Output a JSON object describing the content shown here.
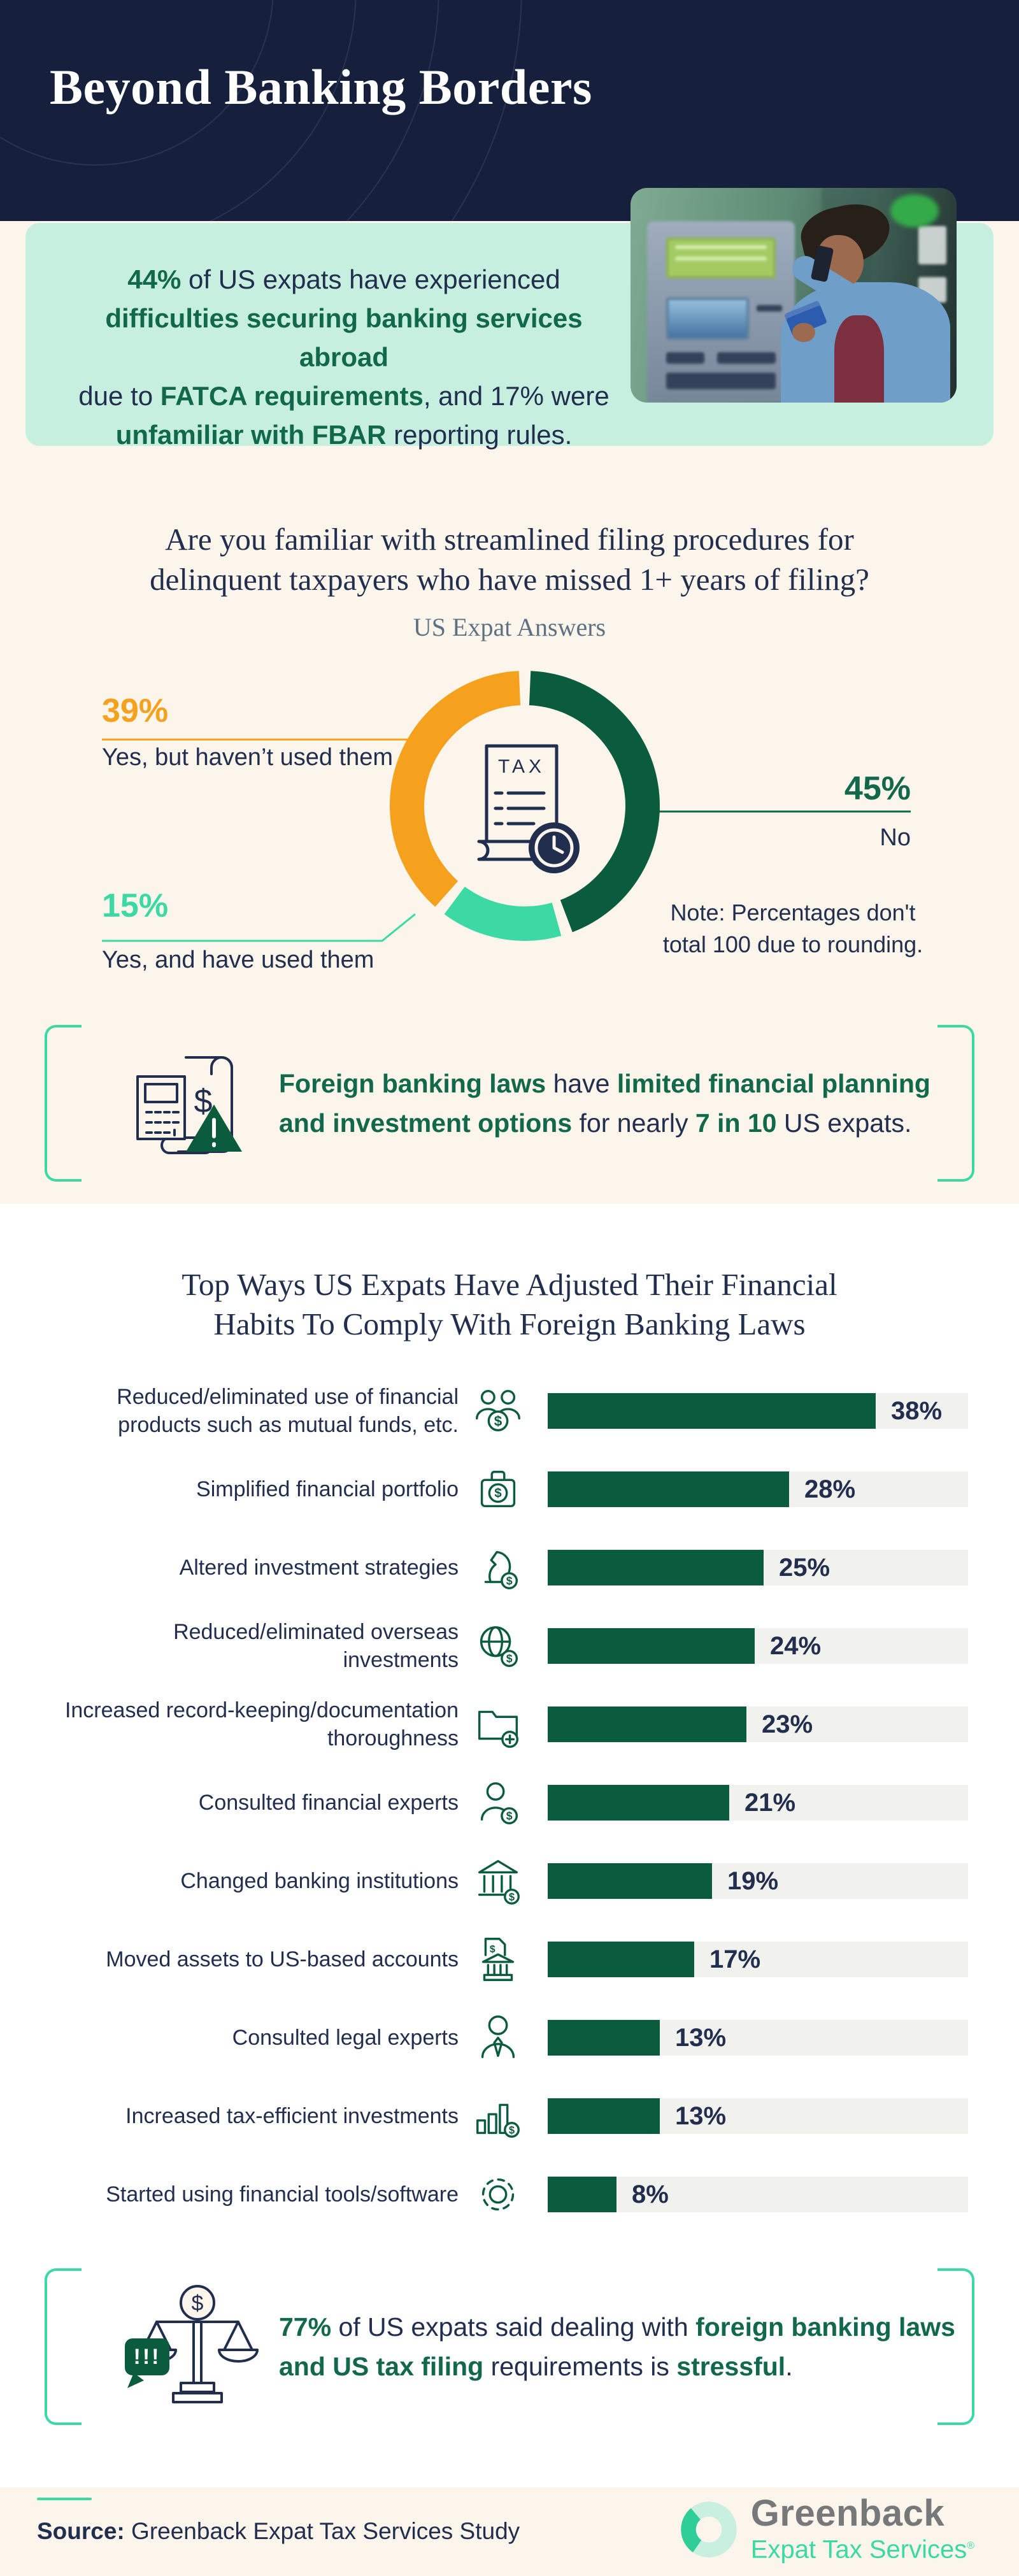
{
  "colors": {
    "navy_bg": "#161F3B",
    "navy_text": "#222E4E",
    "green_text": "#11684A",
    "green_fill": "#0B5C3E",
    "mint": "#3CD9A5",
    "mint_bg": "#C7EFDF",
    "orange": "#F5A11E",
    "cream": "#FBF5EC",
    "track": "#F1F1EE"
  },
  "header": {
    "title": "Beyond Banking Borders"
  },
  "hero": {
    "lines": [
      [
        {
          "t": "44%",
          "c": "gb"
        },
        {
          "t": " of US expats have experienced",
          "c": "n"
        }
      ],
      [
        {
          "t": "difficulties securing banking services abroad",
          "c": "gb"
        }
      ],
      [
        {
          "t": "due to ",
          "c": "n"
        },
        {
          "t": "FATCA requirements",
          "c": "gb"
        },
        {
          "t": ", and 17% were",
          "c": "n"
        }
      ],
      [
        {
          "t": "unfamiliar with FBAR",
          "c": "gb"
        },
        {
          "t": " reporting rules.",
          "c": "n"
        }
      ]
    ],
    "photo_alt": "US expat on phone holding bank card at an ATM"
  },
  "chart_data": [
    {
      "type": "pie",
      "subtype": "donut",
      "title": "Are you familiar with streamlined filing procedures for delinquent taxpayers who have missed 1+ years of filing?",
      "title_line1": "Are you familiar with streamlined filing procedures for",
      "title_line2": "delinquent taxpayers who have missed 1+ years of filing?",
      "subtitle": "US Expat Answers",
      "segments": [
        {
          "label": "No",
          "value": 45,
          "color": "#0B5C3E"
        },
        {
          "label": "Yes, and have used them",
          "value": 15,
          "color": "#3CD9A5"
        },
        {
          "label": "Yes, but haven’t used them",
          "value": 39,
          "color": "#F5A11E"
        }
      ],
      "note_line1": "Note: Percentages don't",
      "note_line2": "total 100 due to rounding.",
      "center_icon": "tax-document-clock-icon"
    },
    {
      "type": "bar",
      "title": "Top Ways US Expats Have Adjusted Their Financial Habits To Comply With Foreign Banking Laws",
      "title_line1": "Top Ways US Expats Have Adjusted Their Financial",
      "title_line2": "Habits To Comply With Foreign Banking Laws",
      "bar_color": "#0B5C3E",
      "track_color": "#F1F1EE",
      "value_suffix": "%",
      "items": [
        {
          "label_lines": [
            "Reduced/eliminated use of financial",
            "products such as mutual funds, etc."
          ],
          "value": 38,
          "icon": "people-dollar-icon"
        },
        {
          "label_lines": [
            "Simplified financial portfolio"
          ],
          "value": 28,
          "icon": "briefcase-dollar-icon"
        },
        {
          "label_lines": [
            "Altered investment strategies"
          ],
          "value": 25,
          "icon": "strategy-dollar-icon"
        },
        {
          "label_lines": [
            "Reduced/eliminated overseas investments"
          ],
          "value": 24,
          "icon": "globe-dollar-icon"
        },
        {
          "label_lines": [
            "Increased record-keeping/documentation",
            "thoroughness"
          ],
          "value": 23,
          "icon": "folder-plus-icon"
        },
        {
          "label_lines": [
            "Consulted financial experts"
          ],
          "value": 21,
          "icon": "person-dollar-icon"
        },
        {
          "label_lines": [
            "Changed banking institutions"
          ],
          "value": 19,
          "icon": "bank-dollar-icon"
        },
        {
          "label_lines": [
            "Moved assets to US-based accounts"
          ],
          "value": 17,
          "icon": "document-bank-icon"
        },
        {
          "label_lines": [
            "Consulted legal experts"
          ],
          "value": 13,
          "icon": "person-tie-icon"
        },
        {
          "label_lines": [
            "Increased tax-efficient investments"
          ],
          "value": 13,
          "icon": "chart-dollar-icon"
        },
        {
          "label_lines": [
            "Started using financial tools/software"
          ],
          "value": 8,
          "icon": "gear-icon"
        }
      ]
    }
  ],
  "callout1": {
    "icon": "calculator-receipt-warning-icon",
    "lines": [
      [
        {
          "t": "Foreign banking laws",
          "c": "gb"
        },
        {
          "t": " have ",
          "c": "n"
        },
        {
          "t": "limited financial planning",
          "c": "gb"
        }
      ],
      [
        {
          "t": "and investment options",
          "c": "gb"
        },
        {
          "t": " for nearly ",
          "c": "n"
        },
        {
          "t": "7 in 10",
          "c": "gb"
        },
        {
          "t": " US expats.",
          "c": "n"
        }
      ]
    ]
  },
  "callout2": {
    "icon": "scales-dollar-alert-icon",
    "lines": [
      [
        {
          "t": "77%",
          "c": "gb"
        },
        {
          "t": " of US expats said dealing with ",
          "c": "n"
        },
        {
          "t": "foreign banking laws",
          "c": "gb"
        }
      ],
      [
        {
          "t": "and US tax filing",
          "c": "gb"
        },
        {
          "t": " requirements is ",
          "c": "n"
        },
        {
          "t": "stressful",
          "c": "gb"
        },
        {
          "t": ".",
          "c": "n"
        }
      ]
    ]
  },
  "footer": {
    "source_label": "Source:",
    "source_text": " Greenback Expat Tax Services Study",
    "logo_name": "Greenback",
    "logo_sub": "Expat Tax Services",
    "logo_reg": "®"
  }
}
